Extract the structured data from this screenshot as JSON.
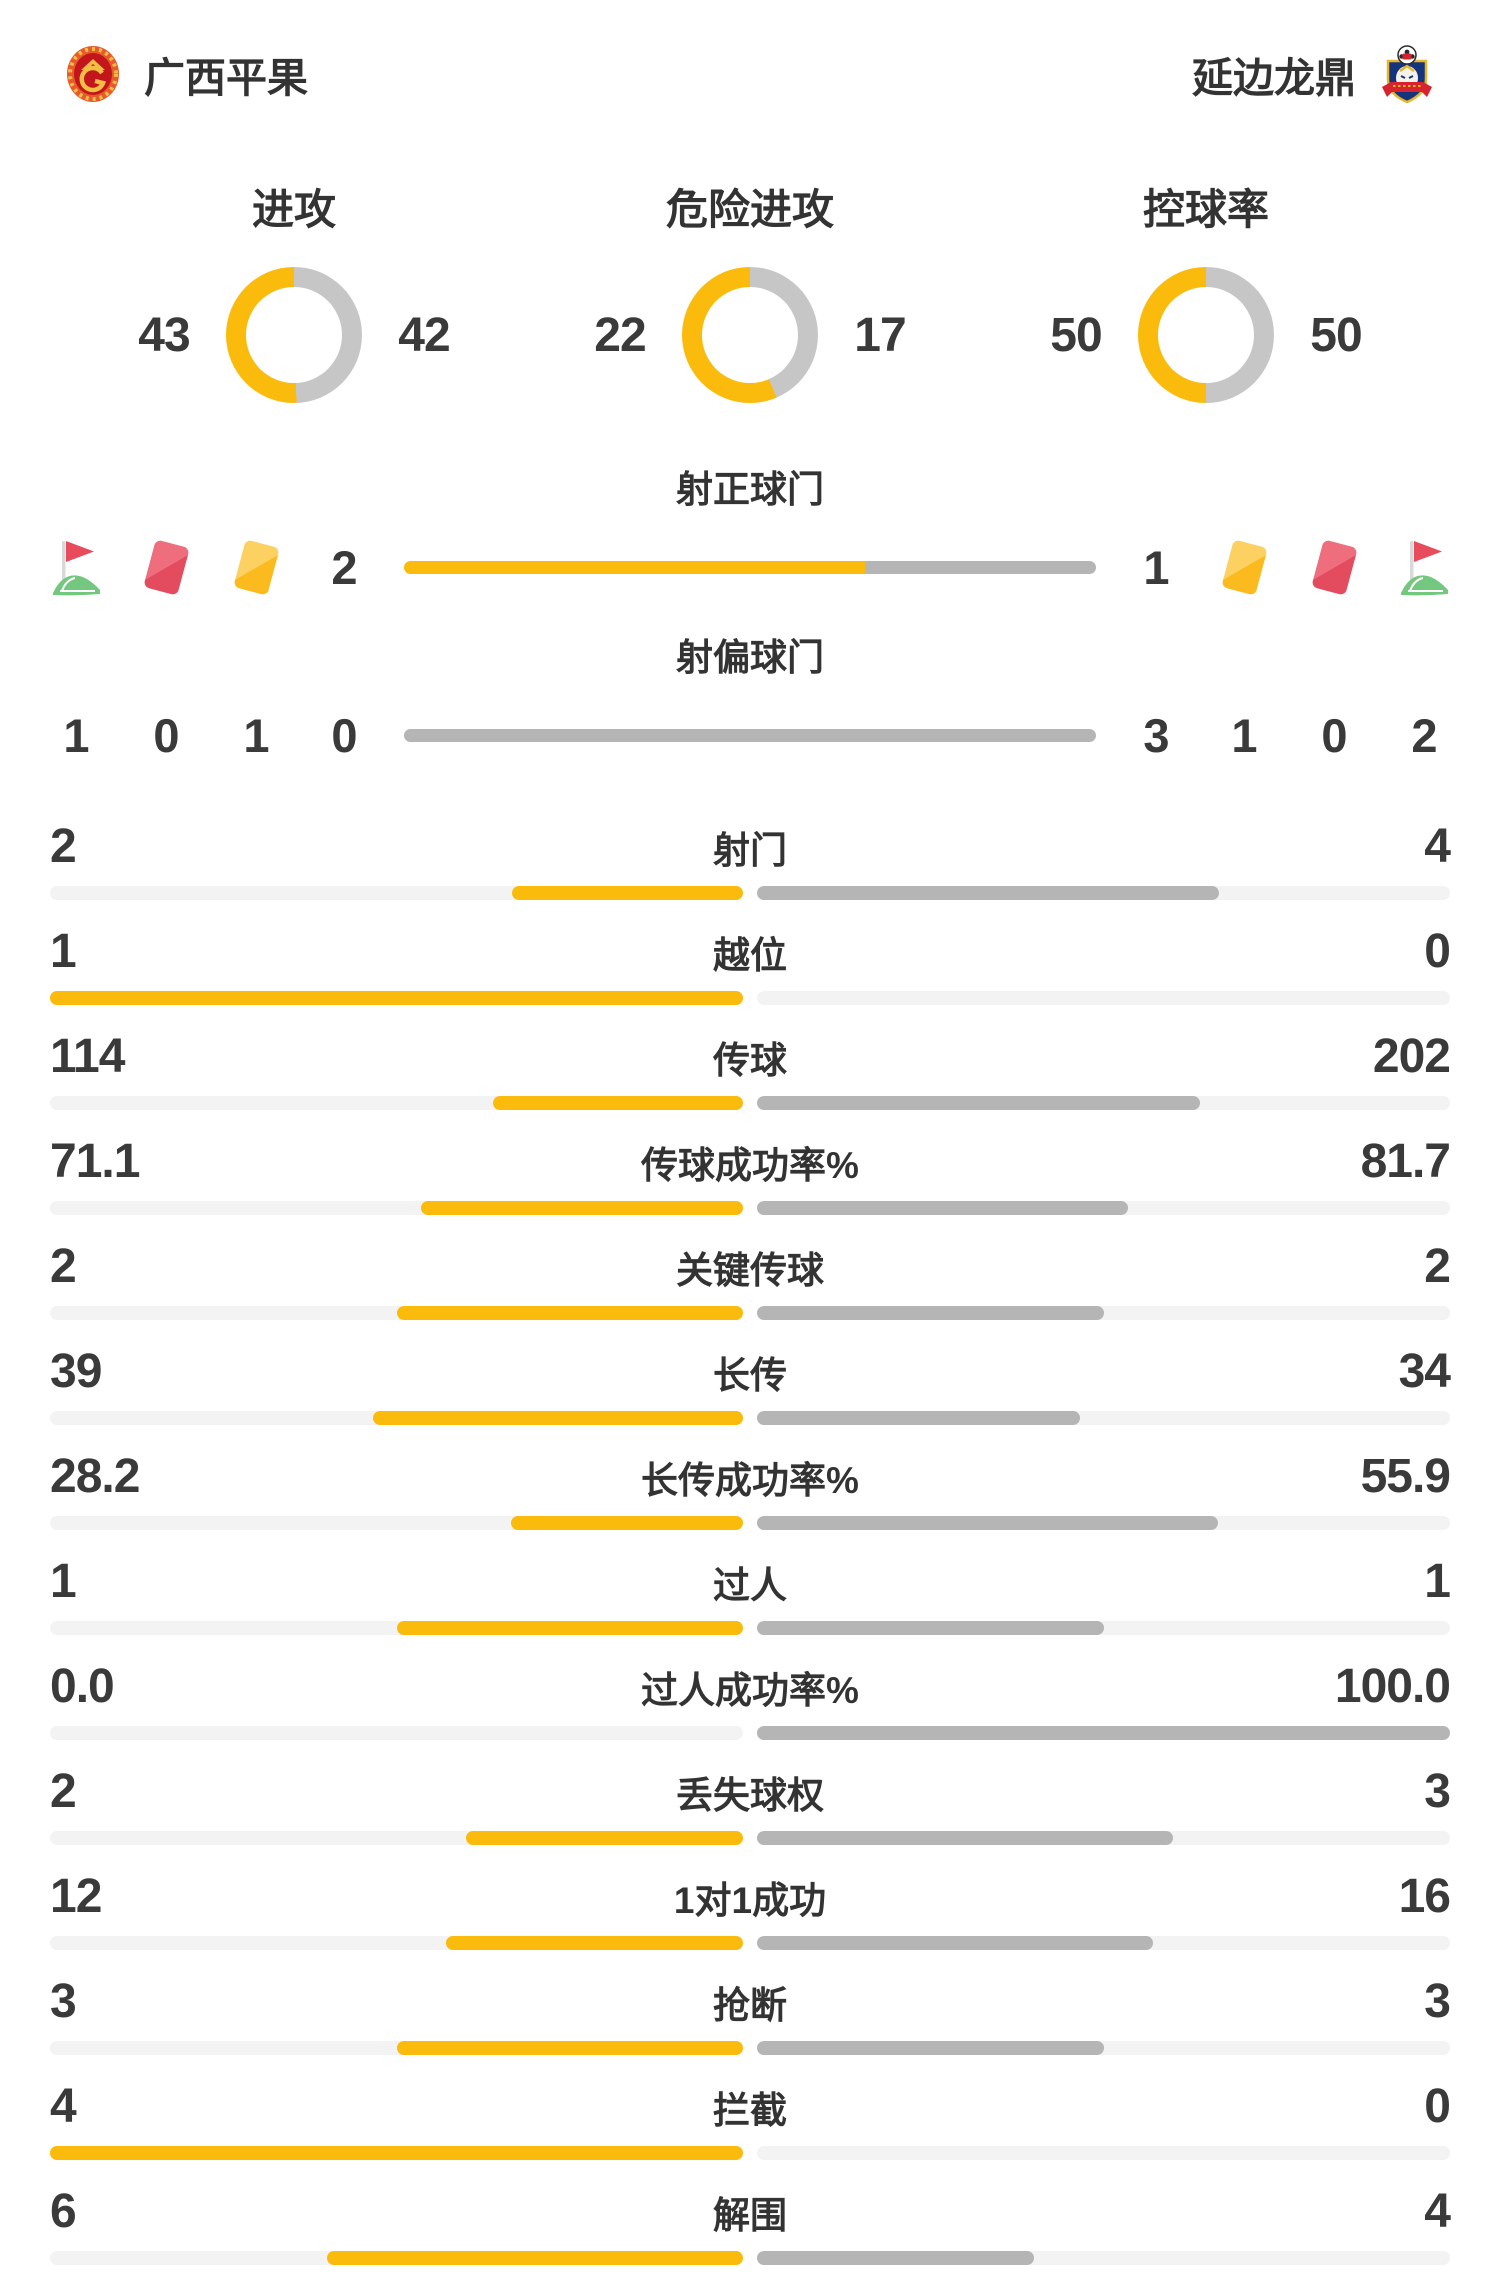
{
  "header": {
    "home": {
      "name": "广西平果",
      "logo": "home-crest-red-gold"
    },
    "away": {
      "name": "延边龙鼎",
      "logo": "away-crest-blue-shield"
    }
  },
  "donuts": [
    {
      "label": "进攻",
      "home": "43",
      "away": "42"
    },
    {
      "label": "危险进攻",
      "home": "22",
      "away": "17"
    },
    {
      "label": "控球率",
      "home": "50",
      "away": "50"
    }
  ],
  "shots": {
    "on_target": {
      "label": "射正球门",
      "home": "2",
      "away": "1"
    },
    "off_target": {
      "label": "射偏球门",
      "home": "0",
      "away": "3"
    },
    "home_icons": {
      "corner": "corner-flag",
      "red": "red-card",
      "yellow": "yellow-card"
    },
    "home_counts": {
      "corner": "1",
      "red": "0",
      "yellow": "1"
    },
    "away_counts": {
      "yellow": "1",
      "red": "0",
      "corner": "2"
    }
  },
  "stats": [
    {
      "label": "射门",
      "home": "2",
      "away": "4"
    },
    {
      "label": "越位",
      "home": "1",
      "away": "0"
    },
    {
      "label": "传球",
      "home": "114",
      "away": "202"
    },
    {
      "label": "传球成功率%",
      "home": "71.1",
      "away": "81.7"
    },
    {
      "label": "关键传球",
      "home": "2",
      "away": "2"
    },
    {
      "label": "长传",
      "home": "39",
      "away": "34"
    },
    {
      "label": "长传成功率%",
      "home": "28.2",
      "away": "55.9"
    },
    {
      "label": "过人",
      "home": "1",
      "away": "1"
    },
    {
      "label": "过人成功率%",
      "home": "0.0",
      "away": "100.0"
    },
    {
      "label": "丢失球权",
      "home": "2",
      "away": "3"
    },
    {
      "label": "1对1成功",
      "home": "12",
      "away": "16"
    },
    {
      "label": "抢断",
      "home": "3",
      "away": "3"
    },
    {
      "label": "拦截",
      "home": "4",
      "away": "0"
    },
    {
      "label": "解围",
      "home": "6",
      "away": "4"
    }
  ],
  "colors": {
    "home_accent": "#fbbb0d",
    "away_bar": "#b5b5b5",
    "donut_gray": "#c6c6c6",
    "track": "#f3f3f3",
    "text": "#333333",
    "red_card": "#e34b5e",
    "yellow_card": "#fbba1e",
    "flag_green": "#74c77f",
    "flag_red": "#e84c5c"
  },
  "chart_data": [
    {
      "type": "pie",
      "title": "进攻",
      "series": [
        {
          "name": "广西平果",
          "value": 43
        },
        {
          "name": "延边龙鼎",
          "value": 42
        }
      ]
    },
    {
      "type": "pie",
      "title": "危险进攻",
      "series": [
        {
          "name": "广西平果",
          "value": 22
        },
        {
          "name": "延边龙鼎",
          "value": 17
        }
      ]
    },
    {
      "type": "pie",
      "title": "控球率",
      "series": [
        {
          "name": "广西平果",
          "value": 50
        },
        {
          "name": "延边龙鼎",
          "value": 50
        }
      ]
    },
    {
      "type": "bar",
      "title": "比赛数据对比",
      "categories": [
        "射正球门",
        "射偏球门",
        "射门",
        "越位",
        "传球",
        "传球成功率%",
        "关键传球",
        "长传",
        "长传成功率%",
        "过人",
        "过人成功率%",
        "丢失球权",
        "1对1成功",
        "抢断",
        "拦截",
        "解围"
      ],
      "series": [
        {
          "name": "广西平果",
          "values": [
            2,
            0,
            2,
            1,
            114,
            71.1,
            2,
            39,
            28.2,
            1,
            0.0,
            2,
            12,
            3,
            4,
            6
          ]
        },
        {
          "name": "延边龙鼎",
          "values": [
            1,
            3,
            4,
            0,
            202,
            81.7,
            2,
            34,
            55.9,
            1,
            100.0,
            3,
            16,
            3,
            0,
            4
          ]
        }
      ]
    }
  ]
}
